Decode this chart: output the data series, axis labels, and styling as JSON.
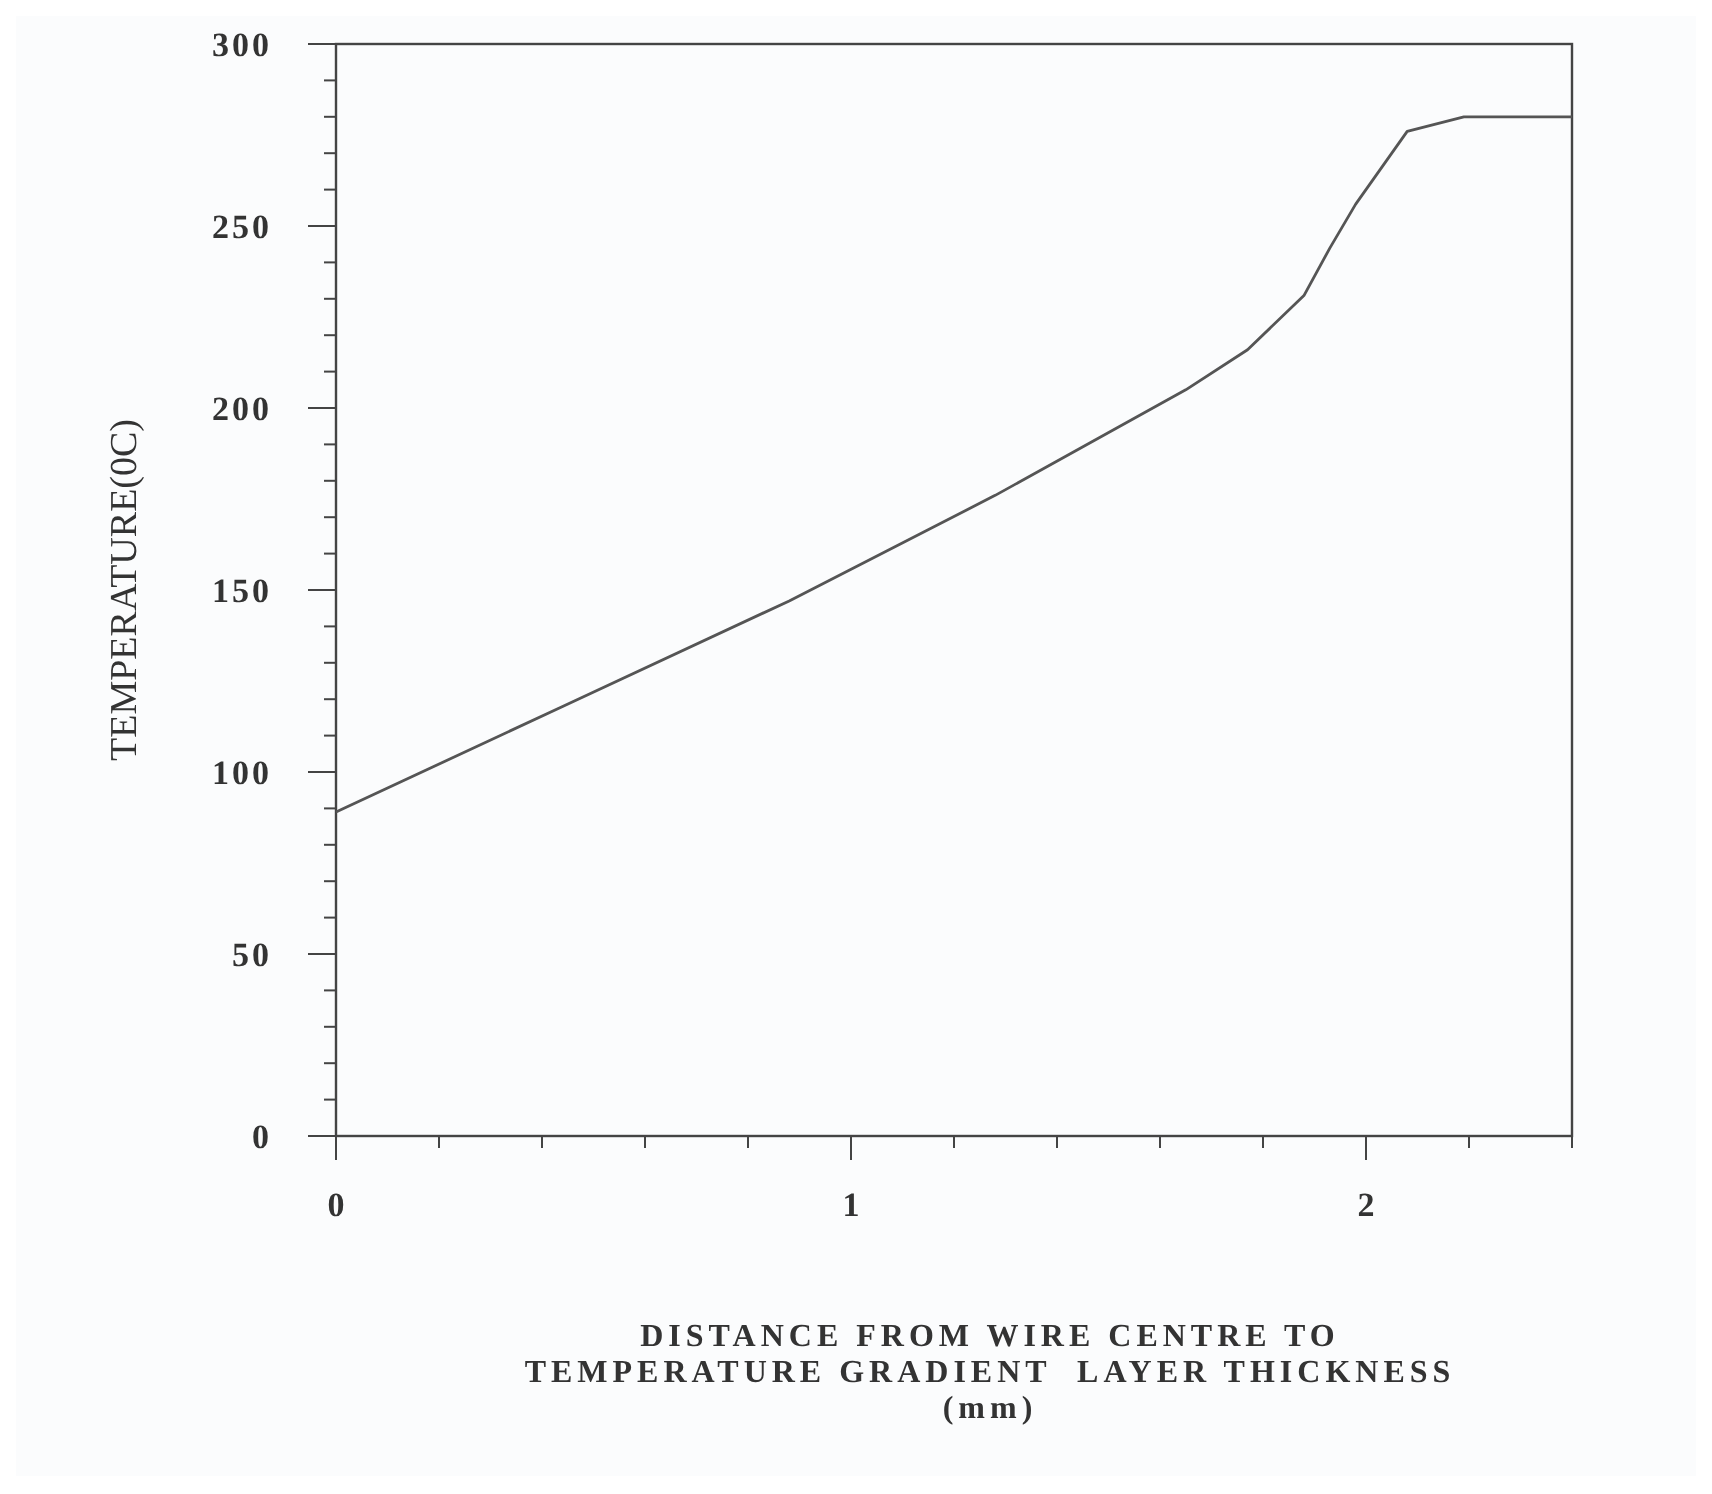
{
  "chart_data": {
    "type": "line",
    "xlabel": "DISTANCE FROM WIRE CENTRE TO\nTEMPERATURE GRADIENT  LAYER THICKNESS\n(mm)",
    "ylabel": "TEMPERATURE(0C)",
    "xlim": [
      0,
      2.4
    ],
    "xticks": [
      0,
      {
        "value": 0.2,
        "label": null
      },
      {
        "value": 0.4,
        "label": null
      },
      {
        "value": 0.6,
        "label": null
      },
      {
        "value": 0.8,
        "label": null
      },
      1,
      {
        "value": 1.2,
        "label": null
      },
      {
        "value": 1.4,
        "label": null
      },
      {
        "value": 1.6,
        "label": null
      },
      {
        "value": 1.8,
        "label": null
      },
      2,
      {
        "value": 2.2,
        "label": null
      },
      {
        "value": 2.4,
        "label": null
      }
    ],
    "ylim": [
      0,
      300
    ],
    "yticks": [
      0,
      {
        "value": 10,
        "label": null
      },
      {
        "value": 20,
        "label": null
      },
      {
        "value": 30,
        "label": null
      },
      {
        "value": 40,
        "label": null
      },
      50,
      {
        "value": 60,
        "label": null
      },
      {
        "value": 70,
        "label": null
      },
      {
        "value": 80,
        "label": null
      },
      {
        "value": 90,
        "label": null
      },
      100,
      {
        "value": 110,
        "label": null
      },
      {
        "value": 120,
        "label": null
      },
      {
        "value": 130,
        "label": null
      },
      {
        "value": 140,
        "label": null
      },
      150,
      {
        "value": 160,
        "label": null
      },
      {
        "value": 170,
        "label": null
      },
      {
        "value": 180,
        "label": null
      },
      {
        "value": 190,
        "label": null
      },
      200,
      {
        "value": 210,
        "label": null
      },
      {
        "value": 220,
        "label": null
      },
      {
        "value": 230,
        "label": null
      },
      {
        "value": 240,
        "label": null
      },
      250,
      {
        "value": 260,
        "label": null
      },
      {
        "value": 270,
        "label": null
      },
      {
        "value": 280,
        "label": null
      },
      {
        "value": 290,
        "label": null
      },
      300
    ],
    "x": [
      0,
      0.44,
      0.88,
      1.28,
      1.65,
      1.77,
      1.88,
      1.93,
      1.98,
      2.08,
      2.19,
      2.4
    ],
    "series": [
      {
        "color": "#555555",
        "values": [
          89,
          118,
          147,
          176,
          205,
          216,
          231,
          244,
          256,
          276,
          280,
          280
        ]
      }
    ],
    "grid": false,
    "marker": "none",
    "line_style": "solid"
  }
}
